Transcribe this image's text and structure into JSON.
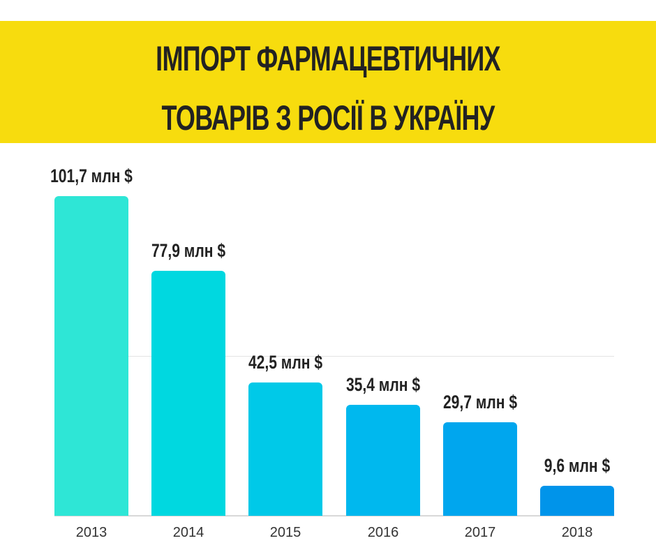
{
  "header": {
    "title_line1": "ІМПОРТ ФАРМАЦЕВТИЧНИХ",
    "title_line2": "ТОВАРІВ З РОСІЇ В УКРАЇНУ",
    "background_color": "#f7dc0e"
  },
  "bars": [
    {
      "year": "2013",
      "label": "101,7 млн $",
      "color": "#2ee6d6"
    },
    {
      "year": "2014",
      "label": "77,9 млн $",
      "color": "#00d8e0"
    },
    {
      "year": "2015",
      "label": "42,5 млн $",
      "color": "#00c9e8"
    },
    {
      "year": "2016",
      "label": "35,4 млн $",
      "color": "#00b8ee"
    },
    {
      "year": "2017",
      "label": "29,7 млн $",
      "color": "#00a6ee"
    },
    {
      "year": "2018",
      "label": "9,6 млн $",
      "color": "#0094ea"
    }
  ],
  "chart_data": {
    "type": "bar",
    "title": "ІМПОРТ ФАРМАЦЕВТИЧНИХ ТОВАРІВ З РОСІЇ В УКРАЇНУ",
    "categories": [
      "2013",
      "2014",
      "2015",
      "2016",
      "2017",
      "2018"
    ],
    "values": [
      101.7,
      77.9,
      42.5,
      35.4,
      29.7,
      9.6
    ],
    "unit": "млн $",
    "data_labels": [
      "101,7 млн $",
      "77,9 млн $",
      "42,5 млн $",
      "35,4 млн $",
      "29,7 млн $",
      "9,6 млн $"
    ],
    "xlabel": "",
    "ylabel": "",
    "grid": true,
    "legend": "none"
  }
}
